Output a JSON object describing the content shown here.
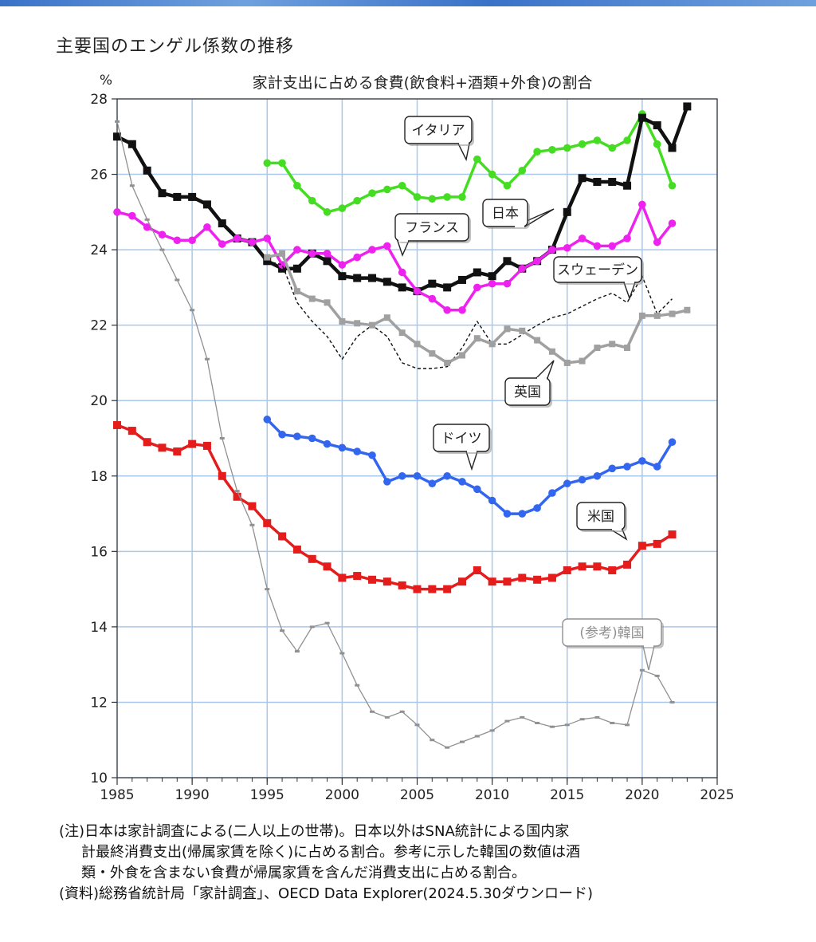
{
  "page_title": "主要国のエンゲル係数の推移",
  "notes": {
    "line1": "(注)日本は家計調査による(二人以上の世帯)。日本以外はSNA統計による国内家",
    "line2": "計最終消費支出(帰属家賃を除く)に占める割合。参考に示した韓国の数値は酒",
    "line3": "類・外食を含まない食費が帰属家賃を含んだ消費支出に占める割合。",
    "source": "(資料)総務省統計局「家計調査」、OECD Data Explorer(2024.5.30ダウンロード)"
  },
  "chart_data": {
    "type": "line",
    "title": "家計支出に占める食費(飲食料+酒類+外食)の割合",
    "ylabel": "%",
    "xlabel": "",
    "xlim": [
      1985,
      2025
    ],
    "ylim": [
      10,
      28
    ],
    "x_ticks": [
      "1985",
      "1990",
      "1995",
      "2000",
      "2005",
      "2010",
      "2015",
      "2020",
      "2025"
    ],
    "y_ticks": [
      "10",
      "12",
      "14",
      "16",
      "18",
      "20",
      "22",
      "24",
      "26",
      "28"
    ],
    "grid": true,
    "series": [
      {
        "name": "イタリア",
        "color": "#44dd22",
        "marker": "dot",
        "style": "solid",
        "x": [
          1995,
          1996,
          1997,
          1998,
          1999,
          2000,
          2001,
          2002,
          2003,
          2004,
          2005,
          2006,
          2007,
          2008,
          2009,
          2010,
          2011,
          2012,
          2013,
          2014,
          2015,
          2016,
          2017,
          2018,
          2019,
          2020,
          2021,
          2022
        ],
        "y": [
          26.3,
          26.3,
          25.7,
          25.3,
          25.0,
          25.1,
          25.3,
          25.5,
          25.6,
          25.7,
          25.4,
          25.35,
          25.4,
          25.4,
          26.4,
          26.0,
          25.7,
          26.1,
          26.6,
          26.65,
          26.7,
          26.8,
          26.9,
          26.7,
          26.9,
          27.6,
          26.8,
          25.7
        ]
      },
      {
        "name": "日本",
        "color": "#111111",
        "marker": "square",
        "style": "solid",
        "x": [
          1985,
          1986,
          1987,
          1988,
          1989,
          1990,
          1991,
          1992,
          1993,
          1994,
          1995,
          1996,
          1997,
          1998,
          1999,
          2000,
          2001,
          2002,
          2003,
          2004,
          2005,
          2006,
          2007,
          2008,
          2009,
          2010,
          2011,
          2012,
          2013,
          2014,
          2015,
          2016,
          2017,
          2018,
          2019,
          2020,
          2021,
          2022,
          2023
        ],
        "y": [
          27.0,
          26.8,
          26.1,
          25.5,
          25.4,
          25.4,
          25.2,
          24.7,
          24.3,
          24.2,
          23.7,
          23.5,
          23.5,
          23.9,
          23.7,
          23.3,
          23.25,
          23.25,
          23.15,
          23.0,
          22.9,
          23.1,
          23.0,
          23.2,
          23.4,
          23.3,
          23.7,
          23.5,
          23.7,
          24.0,
          25.0,
          25.9,
          25.8,
          25.8,
          25.7,
          27.5,
          27.3,
          26.7,
          27.8
        ]
      },
      {
        "name": "フランス",
        "color": "#ee22ee",
        "marker": "dot",
        "style": "solid",
        "x": [
          1985,
          1986,
          1987,
          1988,
          1989,
          1990,
          1991,
          1992,
          1993,
          1994,
          1995,
          1996,
          1997,
          1998,
          1999,
          2000,
          2001,
          2002,
          2003,
          2004,
          2005,
          2006,
          2007,
          2008,
          2009,
          2010,
          2011,
          2012,
          2013,
          2014,
          2015,
          2016,
          2017,
          2018,
          2019,
          2020,
          2021,
          2022
        ],
        "y": [
          25.0,
          24.9,
          24.6,
          24.4,
          24.25,
          24.25,
          24.6,
          24.15,
          24.3,
          24.2,
          24.3,
          23.6,
          24.0,
          23.9,
          23.9,
          23.6,
          23.8,
          24.0,
          24.1,
          23.4,
          22.9,
          22.7,
          22.4,
          22.4,
          23.0,
          23.1,
          23.1,
          23.5,
          23.7,
          24.0,
          24.05,
          24.3,
          24.1,
          24.1,
          24.3,
          25.2,
          24.2,
          24.7
        ]
      },
      {
        "name": "スウェーデン",
        "color": "#111111",
        "marker": "none",
        "style": "dashed",
        "x": [
          1995,
          1996,
          1997,
          1998,
          1999,
          2000,
          2001,
          2002,
          2003,
          2004,
          2005,
          2006,
          2007,
          2008,
          2009,
          2010,
          2011,
          2012,
          2013,
          2014,
          2015,
          2016,
          2017,
          2018,
          2019,
          2020,
          2021,
          2022
        ],
        "y": [
          23.7,
          23.6,
          22.6,
          22.1,
          21.7,
          21.1,
          21.7,
          22.0,
          21.7,
          21.0,
          20.85,
          20.85,
          20.9,
          21.4,
          22.1,
          21.5,
          21.5,
          21.75,
          22.0,
          22.2,
          22.3,
          22.5,
          22.7,
          22.85,
          22.6,
          23.3,
          22.3,
          22.7
        ]
      },
      {
        "name": "英国",
        "color": "#a0a0a0",
        "marker": "square",
        "style": "solid",
        "x": [
          1995,
          1996,
          1997,
          1998,
          1999,
          2000,
          2001,
          2002,
          2003,
          2004,
          2005,
          2006,
          2007,
          2008,
          2009,
          2010,
          2011,
          2012,
          2013,
          2014,
          2015,
          2016,
          2017,
          2018,
          2019,
          2020,
          2021,
          2022,
          2023
        ],
        "y": [
          23.8,
          23.9,
          22.9,
          22.7,
          22.6,
          22.1,
          22.05,
          22.0,
          22.2,
          21.8,
          21.5,
          21.25,
          21.0,
          21.2,
          21.65,
          21.5,
          21.9,
          21.85,
          21.6,
          21.3,
          21.0,
          21.05,
          21.4,
          21.5,
          21.4,
          22.25,
          22.25,
          22.3,
          22.4
        ]
      },
      {
        "name": "ドイツ",
        "color": "#3366ee",
        "marker": "dot",
        "style": "solid",
        "x": [
          1995,
          1996,
          1997,
          1998,
          1999,
          2000,
          2001,
          2002,
          2003,
          2004,
          2005,
          2006,
          2007,
          2008,
          2009,
          2010,
          2011,
          2012,
          2013,
          2014,
          2015,
          2016,
          2017,
          2018,
          2019,
          2020,
          2021,
          2022
        ],
        "y": [
          19.5,
          19.1,
          19.05,
          19.0,
          18.85,
          18.75,
          18.65,
          18.55,
          17.85,
          18.0,
          18.0,
          17.8,
          18.0,
          17.85,
          17.65,
          17.35,
          17.0,
          17.0,
          17.15,
          17.55,
          17.8,
          17.9,
          18.0,
          18.2,
          18.25,
          18.4,
          18.25,
          18.9
        ]
      },
      {
        "name": "米国",
        "color": "#e41c1c",
        "marker": "square",
        "style": "solid",
        "x": [
          1985,
          1986,
          1987,
          1988,
          1989,
          1990,
          1991,
          1992,
          1993,
          1994,
          1995,
          1996,
          1997,
          1998,
          1999,
          2000,
          2001,
          2002,
          2003,
          2004,
          2005,
          2006,
          2007,
          2008,
          2009,
          2010,
          2011,
          2012,
          2013,
          2014,
          2015,
          2016,
          2017,
          2018,
          2019,
          2020,
          2021,
          2022
        ],
        "y": [
          19.35,
          19.2,
          18.9,
          18.75,
          18.65,
          18.85,
          18.8,
          18.0,
          17.45,
          17.2,
          16.75,
          16.4,
          16.05,
          15.8,
          15.6,
          15.3,
          15.35,
          15.25,
          15.2,
          15.1,
          15.0,
          15.0,
          15.0,
          15.2,
          15.5,
          15.2,
          15.2,
          15.3,
          15.25,
          15.3,
          15.5,
          15.6,
          15.6,
          15.5,
          15.65,
          16.15,
          16.2,
          16.45
        ]
      },
      {
        "name": "(参考)韓国",
        "color": "#909090",
        "marker": "tick",
        "style": "solid",
        "x": [
          1985,
          1986,
          1987,
          1988,
          1989,
          1990,
          1991,
          1992,
          1993,
          1994,
          1995,
          1996,
          1997,
          1998,
          1999,
          2000,
          2001,
          2002,
          2003,
          2004,
          2005,
          2006,
          2007,
          2008,
          2009,
          2010,
          2011,
          2012,
          2013,
          2014,
          2015,
          2016,
          2017,
          2018,
          2019,
          2020,
          2021,
          2022
        ],
        "y": [
          27.4,
          25.7,
          24.8,
          24.0,
          23.2,
          22.4,
          21.1,
          19.0,
          17.6,
          16.7,
          15.0,
          13.9,
          13.35,
          14.0,
          14.1,
          13.3,
          12.45,
          11.75,
          11.6,
          11.75,
          11.4,
          11.0,
          10.8,
          10.95,
          11.1,
          11.25,
          11.5,
          11.6,
          11.45,
          11.35,
          11.4,
          11.55,
          11.6,
          11.45,
          11.4,
          12.85,
          12.7,
          12.0
        ]
      }
    ],
    "annotations": [
      {
        "text": "イタリア",
        "series": "イタリア"
      },
      {
        "text": "日本",
        "series": "日本"
      },
      {
        "text": "フランス",
        "series": "フランス"
      },
      {
        "text": "スウェーデン",
        "series": "スウェーデン"
      },
      {
        "text": "英国",
        "series": "英国"
      },
      {
        "text": "ドイツ",
        "series": "ドイツ"
      },
      {
        "text": "米国",
        "series": "米国"
      },
      {
        "text": "(参考)韓国",
        "series": "(参考)韓国",
        "color": "#909090"
      }
    ]
  }
}
